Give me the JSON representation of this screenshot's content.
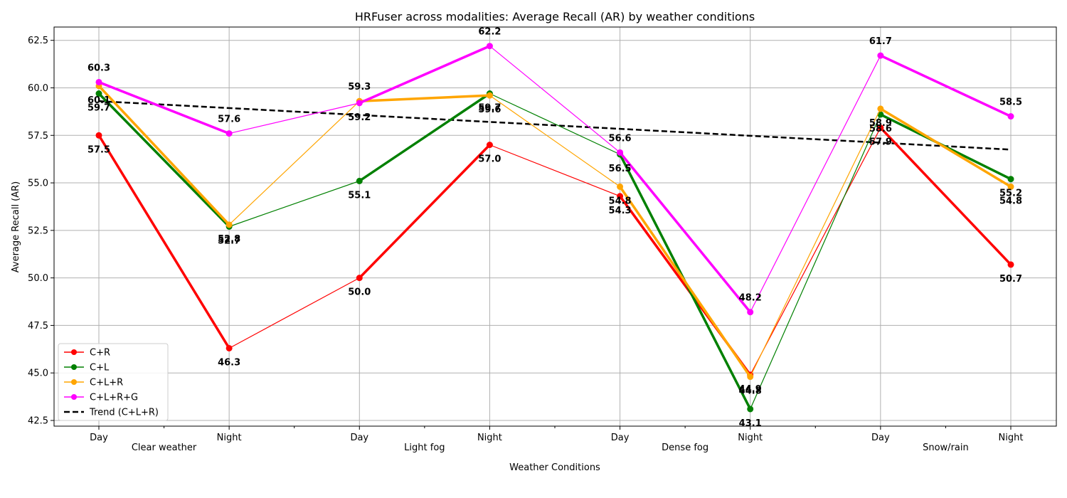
{
  "chart_data": {
    "type": "line",
    "title": "HRFuser across modalities: Average Recall (AR) by weather conditions",
    "xlabel": "Weather Conditions",
    "ylabel": "Average Recall (AR)",
    "ylim": [
      42.2,
      63.2
    ],
    "yticks": [
      "42.5",
      "45.0",
      "47.5",
      "50.0",
      "52.5",
      "55.0",
      "57.5",
      "60.0",
      "62.5"
    ],
    "categories": [
      "Day",
      "Night",
      "Day",
      "Night",
      "Day",
      "Night",
      "Day",
      "Night"
    ],
    "groups": [
      "Clear weather",
      "Light fog",
      "Dense fog",
      "Snow/rain"
    ],
    "grid": true,
    "legend_position": "lower-left",
    "series": [
      {
        "name": "C+R",
        "color": "#ff0000",
        "values": [
          57.5,
          46.3,
          50.0,
          57.0,
          54.3,
          44.9,
          57.9,
          50.7
        ]
      },
      {
        "name": "C+L",
        "color": "#008000",
        "values": [
          59.7,
          52.7,
          55.1,
          59.7,
          56.5,
          43.1,
          58.6,
          55.2
        ]
      },
      {
        "name": "C+L+R",
        "color": "#ffa500",
        "values": [
          60.1,
          52.8,
          59.3,
          59.6,
          54.8,
          44.8,
          58.9,
          54.8
        ]
      },
      {
        "name": "C+L+R+G",
        "color": "#ff00ff",
        "values": [
          60.3,
          57.6,
          59.2,
          62.2,
          56.6,
          48.2,
          61.7,
          58.5
        ]
      }
    ],
    "trend": {
      "name": "Trend (C+L+R)",
      "color": "#000000",
      "start": 59.3,
      "end": 56.75
    }
  }
}
